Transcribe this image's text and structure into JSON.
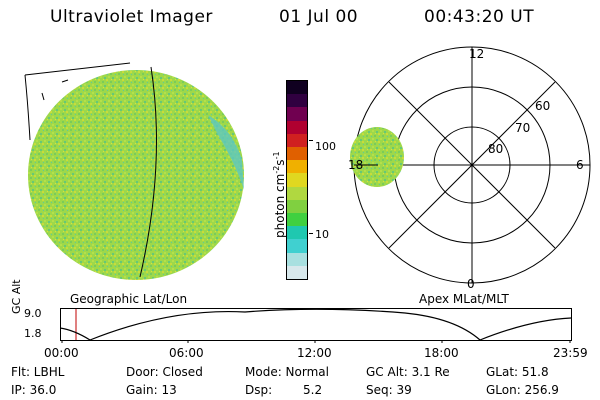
{
  "header": {
    "instrument": "Ultraviolet Imager",
    "date": "01 Jul 00",
    "time": "00:43:20 UT"
  },
  "colorbar": {
    "label_main": "photon cm",
    "label_exp1": "-2",
    "label_mid": "s",
    "label_exp2": "-1",
    "tick_high": "100",
    "tick_low": "10",
    "colors": [
      "#d8e8ec",
      "#a8e0e0",
      "#40d0d0",
      "#1fc8b0",
      "#40d040",
      "#80d040",
      "#b0d840",
      "#e0d820",
      "#f0b000",
      "#e06000",
      "#d02020",
      "#b00030",
      "#700050",
      "#300040",
      "#100020"
    ]
  },
  "earth_panel": {
    "label": "Geographic Lat/Lon"
  },
  "polar_plot": {
    "label": "Apex MLat/MLT",
    "mlt_labels": {
      "top": "12",
      "left": "18",
      "right": "6",
      "bottom": "0"
    },
    "lat_labels": [
      "60",
      "70",
      "80"
    ]
  },
  "altitude_plot": {
    "ylabel": "GC Alt",
    "yticks": [
      "9.0",
      "1.8"
    ],
    "xticks": [
      "00:00",
      "06:00",
      "12:00",
      "18:00",
      "23:59"
    ]
  },
  "info": {
    "flt": "Flt: LBHL",
    "ip": "IP: 36.0",
    "door": "Door: Closed",
    "gain": "Gain: 13",
    "mode": "Mode: Normal",
    "dsp_label": "Dsp:",
    "dsp_value": "5.2",
    "gc_alt": "GC Alt: 3.1 Re",
    "seq": "Seq: 39",
    "glat": "GLat: 51.8",
    "glon": "GLon: 256.9"
  }
}
